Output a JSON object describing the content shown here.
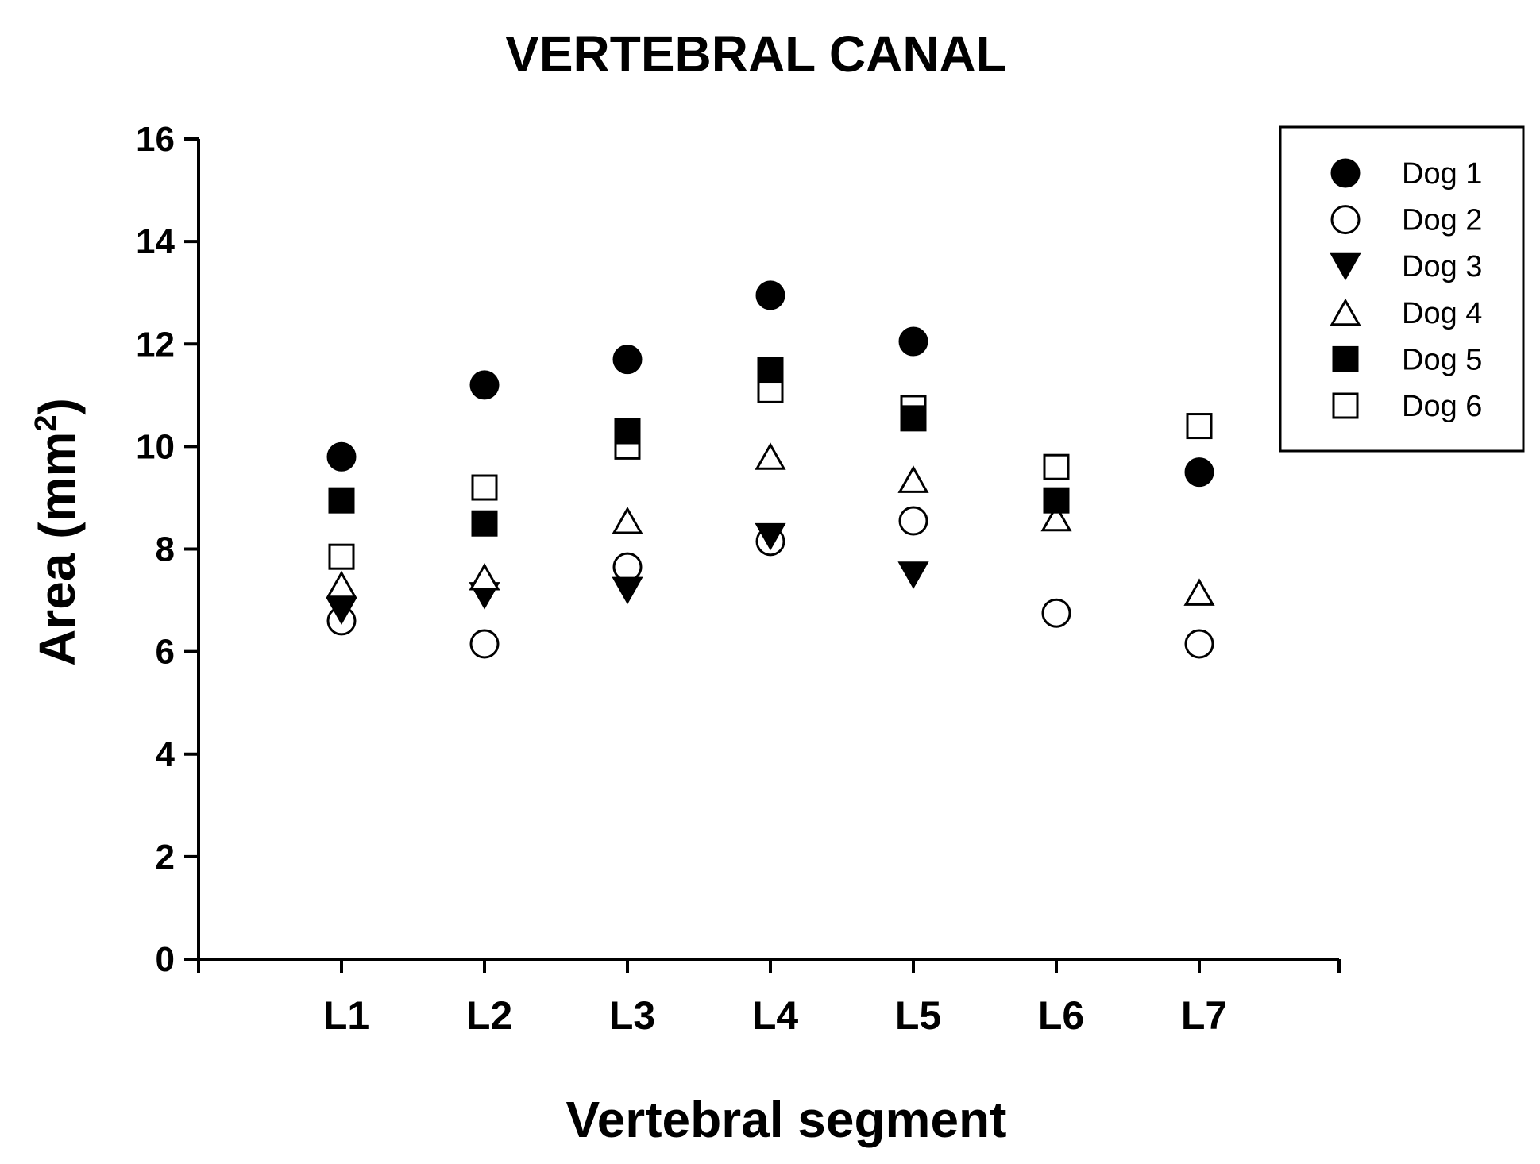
{
  "chart_data": {
    "type": "scatter",
    "title": "VERTEBRAL CANAL",
    "xlabel": "Vertebral segment",
    "ylabel_main": "Area (mm",
    "ylabel_sup": "2",
    "ylabel_close": ")",
    "categories": [
      "L1",
      "L2",
      "L3",
      "L4",
      "L5",
      "L6",
      "L7"
    ],
    "ylim": [
      0,
      16
    ],
    "yticks": [
      "0",
      "2",
      "4",
      "6",
      "8",
      "10",
      "12",
      "14",
      "16"
    ],
    "legend_position": "top-right",
    "series": [
      {
        "name": "Dog 1",
        "marker": "filled-circle",
        "values": [
          9.8,
          11.2,
          11.7,
          12.95,
          12.05,
          null,
          9.5
        ]
      },
      {
        "name": "Dog 2",
        "marker": "open-circle",
        "values": [
          6.6,
          6.15,
          7.65,
          8.15,
          8.55,
          6.75,
          6.15
        ]
      },
      {
        "name": "Dog 3",
        "marker": "filled-triangle-down",
        "values": [
          6.8,
          7.1,
          7.2,
          8.25,
          7.5,
          null,
          null
        ]
      },
      {
        "name": "Dog 4",
        "marker": "open-triangle-up",
        "values": [
          7.3,
          7.45,
          8.55,
          9.8,
          9.35,
          8.6,
          7.15
        ]
      },
      {
        "name": "Dog 5",
        "marker": "filled-square",
        "values": [
          8.95,
          8.5,
          10.3,
          11.5,
          10.55,
          8.95,
          null
        ]
      },
      {
        "name": "Dog 6",
        "marker": "open-square",
        "values": [
          7.85,
          9.2,
          10.0,
          11.1,
          10.75,
          9.6,
          10.4
        ]
      }
    ]
  }
}
